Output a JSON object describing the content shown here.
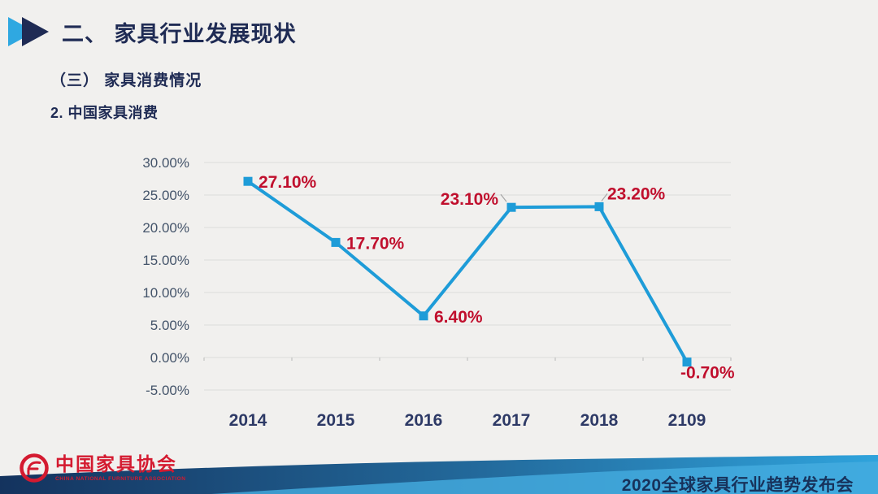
{
  "slide": {
    "title": "二、 家具行业发展现状",
    "section_subtitle": "（三） 家具消费情况",
    "chart_heading": "2. 中国家具消费"
  },
  "chart_data": {
    "type": "line",
    "title": "2. 中国家具消费",
    "categories": [
      "2014",
      "2015",
      "2016",
      "2017",
      "2018",
      "2109"
    ],
    "values": [
      27.1,
      17.7,
      6.4,
      23.1,
      23.2,
      -0.7
    ],
    "data_labels": [
      "27.10%",
      "17.70%",
      "6.40%",
      "23.10%",
      "23.20%",
      "-0.70%"
    ],
    "y_ticks": [
      "30.00%",
      "25.00%",
      "20.00%",
      "15.00%",
      "10.00%",
      "5.00%",
      "0.00%",
      "-5.00%"
    ],
    "ylim": [
      -5,
      30
    ],
    "y_step": 5,
    "grid": true,
    "legend": "none",
    "label_positions": [
      "right",
      "right",
      "right",
      "left-above",
      "right-above",
      "below-left"
    ],
    "marker": "square"
  },
  "footer": {
    "logo_text": "中国家具协会",
    "logo_subtext": "CHINA NATIONAL FURNITURE ASSOCIATION",
    "conference_title": "2020全球家具行业趋势发布会"
  },
  "colors": {
    "background": "#F1F0EE",
    "title_navy": "#1F2B54",
    "arrow_light_blue": "#2FA8E1",
    "axis_text": "#44546A",
    "x_label_navy": "#2E3A66",
    "line_blue": "#1E9CD8",
    "data_label_red": "#C00F2D",
    "gridline": "#E3E3E1",
    "tick_mark": "#C9C9C7",
    "leader_line": "#A6A6A6",
    "logo_red": "#D41A30",
    "band_navy": "#14335E",
    "band_mid_blue": "#236A9C",
    "band_blue": "#2FA3DC",
    "band_light_blue": "#45ADE0",
    "footer_text_navy": "#17325B"
  }
}
